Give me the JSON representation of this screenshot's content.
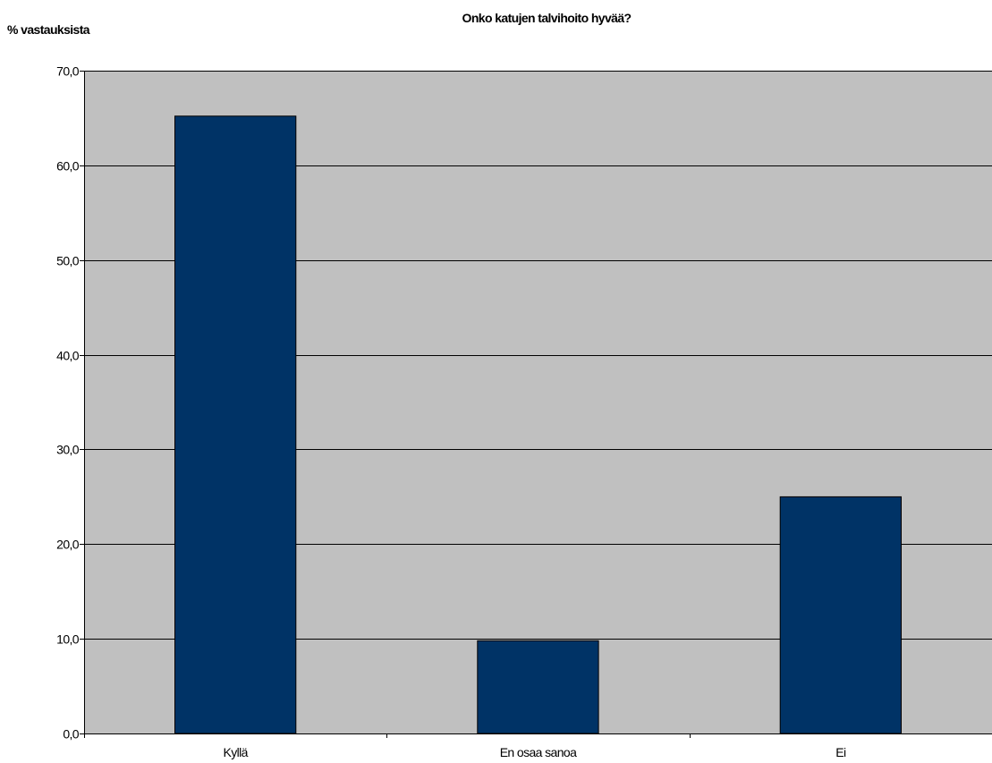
{
  "chart_data": {
    "type": "bar",
    "title": "Onko katujen talvihoito hyvää?",
    "ylabel": "% vastauksista",
    "xlabel": "",
    "categories": [
      "Kyllä",
      "En osaa sanoa",
      "Ei"
    ],
    "values": [
      65.2,
      9.8,
      25.0
    ],
    "ylim": [
      0,
      70
    ],
    "yticks": [
      "0,0",
      "10,0",
      "20,0",
      "30,0",
      "40,0",
      "50,0",
      "60,0",
      "70,0"
    ],
    "grid": true,
    "legend": "none",
    "colors": {
      "bar": "#003366",
      "plot_background": "#c0c0c0",
      "gridline": "#000000"
    }
  }
}
